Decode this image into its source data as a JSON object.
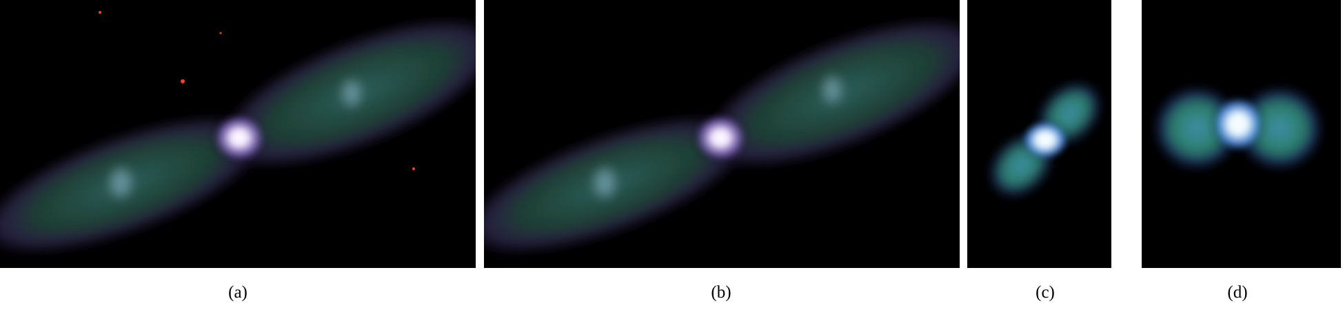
{
  "figure": {
    "panels": [
      {
        "label": "(a)"
      },
      {
        "label": "(b)"
      },
      {
        "label": "(c)"
      },
      {
        "label": "(d)"
      }
    ]
  }
}
